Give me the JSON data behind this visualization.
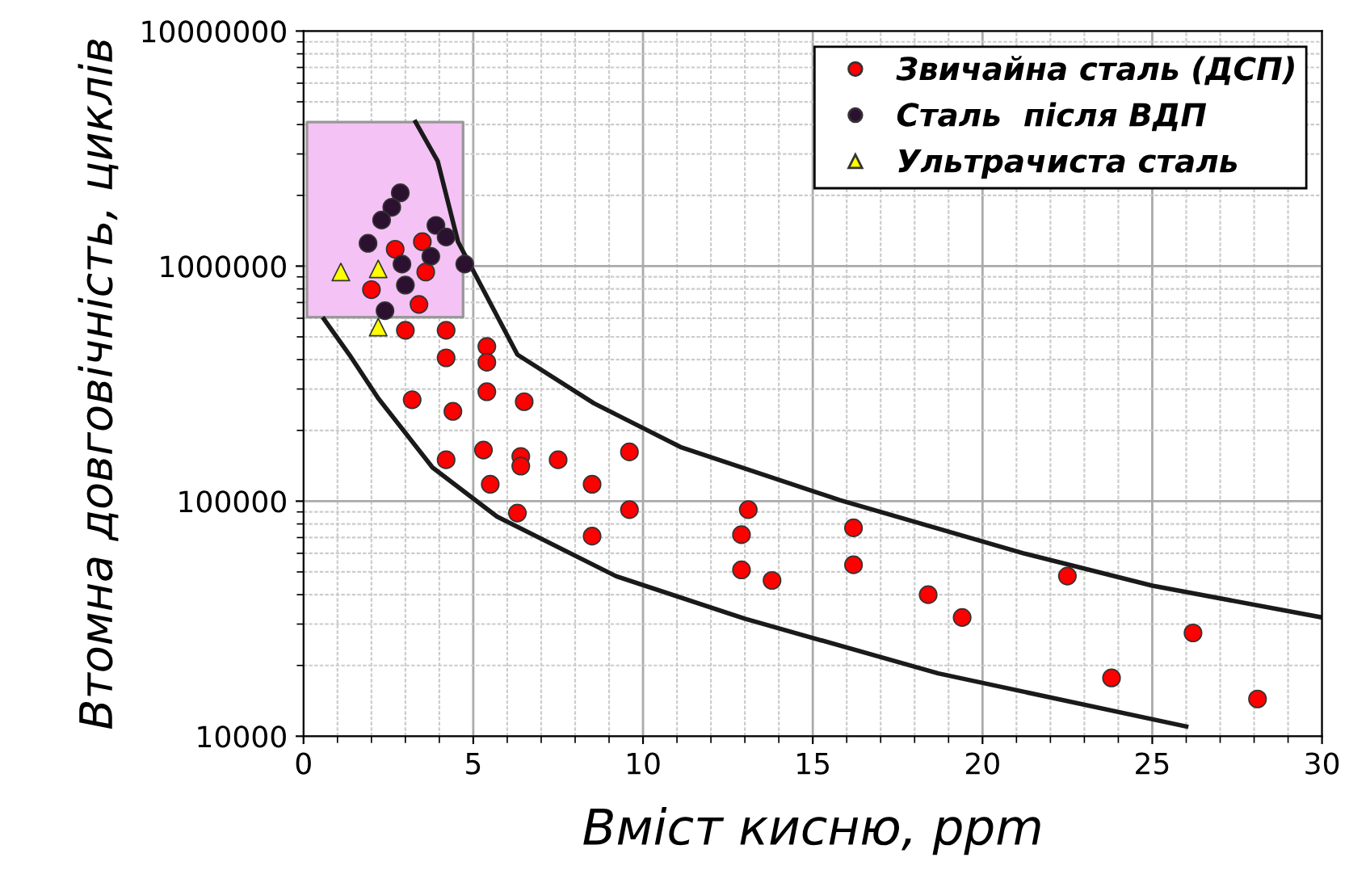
{
  "chart_data": {
    "type": "scatter",
    "xlabel": "Вміст кисню, ppm",
    "ylabel": "Втомна довговічність, циклів",
    "log": "y",
    "xlim": [
      0,
      30
    ],
    "xticks": [
      0,
      5,
      10,
      15,
      20,
      25,
      30
    ],
    "ylim": [
      10000,
      10000000
    ],
    "yticks": [
      10000,
      100000,
      1000000,
      10000000
    ],
    "grid": true,
    "legend": "top right",
    "series": [
      {
        "type": "line",
        "color": "#f4c2f4",
        "x": [
          0.1,
          4.7
        ],
        "values": [
          null,
          null
        ],
        "lower": [
          606000,
          606000
        ],
        "upper": [
          4100000,
          4100000
        ]
      },
      {
        "type": "line",
        "color": "#1a1a1a",
        "x": [
          3.3,
          3.95,
          4.55,
          6.3,
          8.55,
          11.1,
          15.8,
          21.2,
          25.0,
          30.0
        ],
        "values": [
          4100000,
          2800000,
          1270000,
          420000,
          261000,
          170000,
          101000,
          60000,
          43700,
          32000
        ]
      },
      {
        "type": "line",
        "color": "#1a1a1a",
        "x": [
          0.6,
          1.35,
          2.2,
          3.8,
          5.7,
          9.2,
          13.0,
          18.7,
          26.0
        ],
        "values": [
          596000,
          420000,
          274000,
          139000,
          86000,
          48000,
          31600,
          18500,
          11000
        ]
      },
      {
        "name": "Звичайна сталь (ДСП)",
        "marker": "circle",
        "color": "#ff0000",
        "x": [
          3.0,
          4.2,
          5.4,
          4.2,
          5.4,
          3.2,
          4.4,
          5.4,
          6.5,
          4.2,
          5.3,
          6.4,
          6.4,
          5.5,
          7.5,
          8.5,
          9.6,
          6.3,
          8.5,
          9.6,
          13.1,
          12.9,
          12.9,
          13.8,
          16.2,
          16.2,
          18.4,
          19.4,
          22.5,
          26.2,
          23.8,
          28.1,
          3.5,
          2.7,
          3.6,
          2.0,
          3.4
        ],
        "values": [
          533000,
          533000,
          455000,
          407000,
          390000,
          270000,
          241000,
          292000,
          265000,
          150000,
          165000,
          155000,
          141000,
          118000,
          150000,
          118000,
          162000,
          89000,
          71000,
          92000,
          92000,
          72000,
          51000,
          46000,
          77000,
          53600,
          40000,
          32000,
          48000,
          27500,
          17700,
          14400,
          1270000,
          1180000,
          944000,
          794000,
          687000
        ]
      },
      {
        "name": "Сталь  після ВДП",
        "marker": "circle",
        "color": "#2b1030",
        "x": [
          2.85,
          2.6,
          2.3,
          3.9,
          4.2,
          1.9,
          3.75,
          2.9,
          3.0,
          4.75,
          2.4
        ],
        "values": [
          2050000,
          1780000,
          1570000,
          1490000,
          1330000,
          1250000,
          1100000,
          1020000,
          830000,
          1020000,
          646000
        ]
      },
      {
        "name": "Ультрачиста сталь",
        "marker": "triangle",
        "color": "#ffff00",
        "x": [
          1.1,
          2.2,
          2.2
        ],
        "values": [
          944000,
          973000,
          550000
        ]
      }
    ]
  }
}
